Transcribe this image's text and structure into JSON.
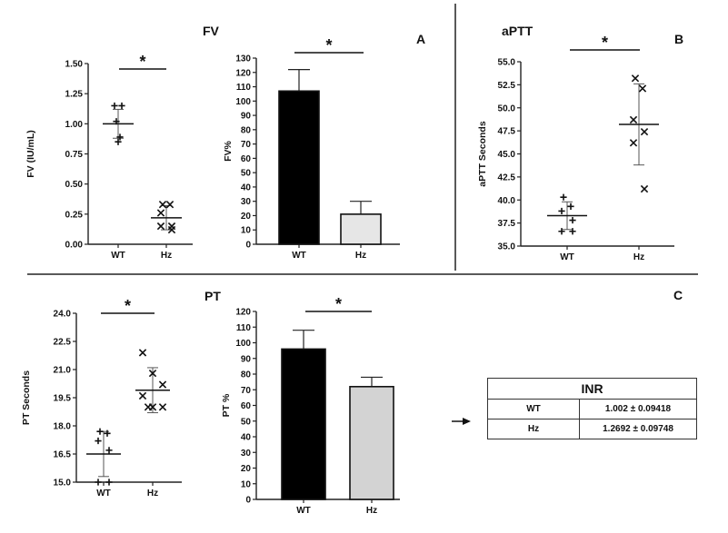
{
  "figure": {
    "panel_a": "A",
    "panel_b": "B",
    "panel_c": "C",
    "title_fv": "FV",
    "title_aptt": "aPTT",
    "title_pt": "PT",
    "significance": "*"
  },
  "inr_table": {
    "title": "INR",
    "rows": [
      {
        "group": "WT",
        "value": "1.002 ± 0.09418"
      },
      {
        "group": "Hz",
        "value": "1.2692 ± 0.09748"
      }
    ]
  },
  "colors": {
    "wt_bar": "#000000",
    "hz_bar_fv": "#e6e6e6",
    "hz_bar_pt": "#d3d3d3",
    "axis": "#222222"
  },
  "chart_data": [
    {
      "id": "fv_abs",
      "type": "scatter",
      "ylabel": "FV (IU/mL)",
      "ylim": [
        0,
        1.5
      ],
      "yticks": [
        "0.00",
        "0.25",
        "0.50",
        "0.75",
        "1.00",
        "1.25",
        "1.50"
      ],
      "categories": [
        "WT",
        "Hz"
      ],
      "points": [
        {
          "group": "WT",
          "marker": "+",
          "values": [
            1.15,
            1.15,
            1.02,
            0.89,
            0.85
          ]
        },
        {
          "group": "Hz",
          "marker": "x",
          "values": [
            0.33,
            0.33,
            0.26,
            0.15,
            0.15,
            0.12
          ]
        }
      ],
      "summary": [
        {
          "group": "WT",
          "mean": 1.0,
          "sd": 0.12
        },
        {
          "group": "Hz",
          "mean": 0.22,
          "sd": 0.1
        }
      ],
      "significance": "*"
    },
    {
      "id": "fv_pct",
      "type": "bar",
      "ylabel": "FV%",
      "ylim": [
        0,
        130
      ],
      "yticks": [
        "0",
        "10",
        "20",
        "30",
        "40",
        "50",
        "60",
        "70",
        "80",
        "90",
        "100",
        "110",
        "120",
        "130"
      ],
      "categories": [
        "WT",
        "Hz"
      ],
      "values": [
        107,
        21
      ],
      "errors": [
        15,
        9
      ],
      "significance": "*"
    },
    {
      "id": "aptt",
      "type": "scatter",
      "ylabel": "aPTT Seconds",
      "ylim": [
        35.0,
        55.0
      ],
      "yticks": [
        "35.0",
        "37.5",
        "40.0",
        "42.5",
        "45.0",
        "47.5",
        "50.0",
        "52.5",
        "55.0"
      ],
      "categories": [
        "WT",
        "Hz"
      ],
      "points": [
        {
          "group": "WT",
          "marker": "+",
          "values": [
            40.3,
            39.3,
            38.8,
            37.8,
            36.6,
            36.6
          ]
        },
        {
          "group": "Hz",
          "marker": "x",
          "values": [
            53.2,
            52.1,
            48.7,
            47.4,
            46.2,
            41.2
          ]
        }
      ],
      "summary": [
        {
          "group": "WT",
          "mean": 38.3,
          "sd": 1.5
        },
        {
          "group": "Hz",
          "mean": 48.2,
          "sd": 4.4
        }
      ],
      "significance": "*"
    },
    {
      "id": "pt_sec",
      "type": "scatter",
      "ylabel": "PT Seconds",
      "ylim": [
        15.0,
        24.0
      ],
      "yticks": [
        "15.0",
        "16.5",
        "18.0",
        "19.5",
        "21.0",
        "22.5",
        "24.0"
      ],
      "categories": [
        "WT",
        "Hz"
      ],
      "points": [
        {
          "group": "WT",
          "marker": "+",
          "values": [
            17.7,
            17.6,
            17.2,
            16.7,
            15.0,
            15.0
          ]
        },
        {
          "group": "Hz",
          "marker": "x",
          "values": [
            21.9,
            20.8,
            20.2,
            19.6,
            19.0,
            19.0,
            19.0
          ]
        }
      ],
      "summary": [
        {
          "group": "WT",
          "mean": 16.5,
          "sd": 1.2
        },
        {
          "group": "Hz",
          "mean": 19.9,
          "sd": 1.2
        }
      ],
      "significance": "*"
    },
    {
      "id": "pt_pct",
      "type": "bar",
      "ylabel": "PT %",
      "ylim": [
        0,
        120
      ],
      "yticks": [
        "0",
        "10",
        "20",
        "30",
        "40",
        "50",
        "60",
        "70",
        "80",
        "90",
        "100",
        "110",
        "120"
      ],
      "categories": [
        "WT",
        "Hz"
      ],
      "values": [
        96,
        72
      ],
      "errors": [
        12,
        6
      ],
      "significance": "*"
    }
  ]
}
